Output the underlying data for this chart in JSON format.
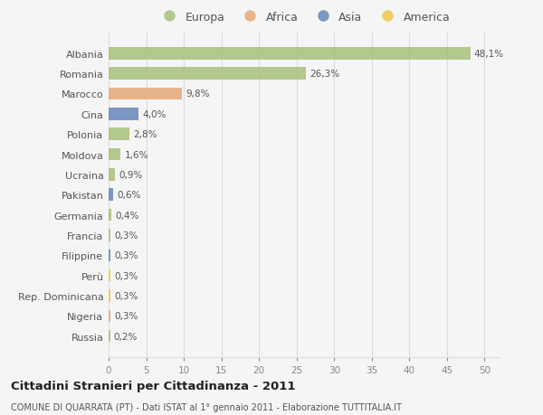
{
  "countries": [
    "Albania",
    "Romania",
    "Marocco",
    "Cina",
    "Polonia",
    "Moldova",
    "Ucraina",
    "Pakistan",
    "Germania",
    "Francia",
    "Filippine",
    "Perù",
    "Rep. Dominicana",
    "Nigeria",
    "Russia"
  ],
  "values": [
    48.1,
    26.3,
    9.8,
    4.0,
    2.8,
    1.6,
    0.9,
    0.6,
    0.4,
    0.3,
    0.3,
    0.3,
    0.3,
    0.3,
    0.2
  ],
  "labels": [
    "48,1%",
    "26,3%",
    "9,8%",
    "4,0%",
    "2,8%",
    "1,6%",
    "0,9%",
    "0,6%",
    "0,4%",
    "0,3%",
    "0,3%",
    "0,3%",
    "0,3%",
    "0,3%",
    "0,2%"
  ],
  "continents": [
    "Europa",
    "Europa",
    "Africa",
    "Asia",
    "Europa",
    "Europa",
    "Europa",
    "Asia",
    "Europa",
    "Europa",
    "Asia",
    "America",
    "America",
    "Africa",
    "Europa"
  ],
  "continent_colors": {
    "Europa": "#a8c07a",
    "Africa": "#e8a878",
    "Asia": "#6688bb",
    "America": "#f0c84a"
  },
  "legend_items": [
    "Europa",
    "Africa",
    "Asia",
    "America"
  ],
  "title": "Cittadini Stranieri per Cittadinanza - 2011",
  "subtitle": "COMUNE DI QUARRATA (PT) - Dati ISTAT al 1° gennaio 2011 - Elaborazione TUTTITALIA.IT",
  "xlim": [
    0,
    52
  ],
  "xticks": [
    0,
    5,
    10,
    15,
    20,
    25,
    30,
    35,
    40,
    45,
    50
  ],
  "background_color": "#f5f5f5",
  "plot_bg_color": "#f5f5f5",
  "grid_color": "#dddddd",
  "label_color": "#555555",
  "tick_color": "#888888"
}
